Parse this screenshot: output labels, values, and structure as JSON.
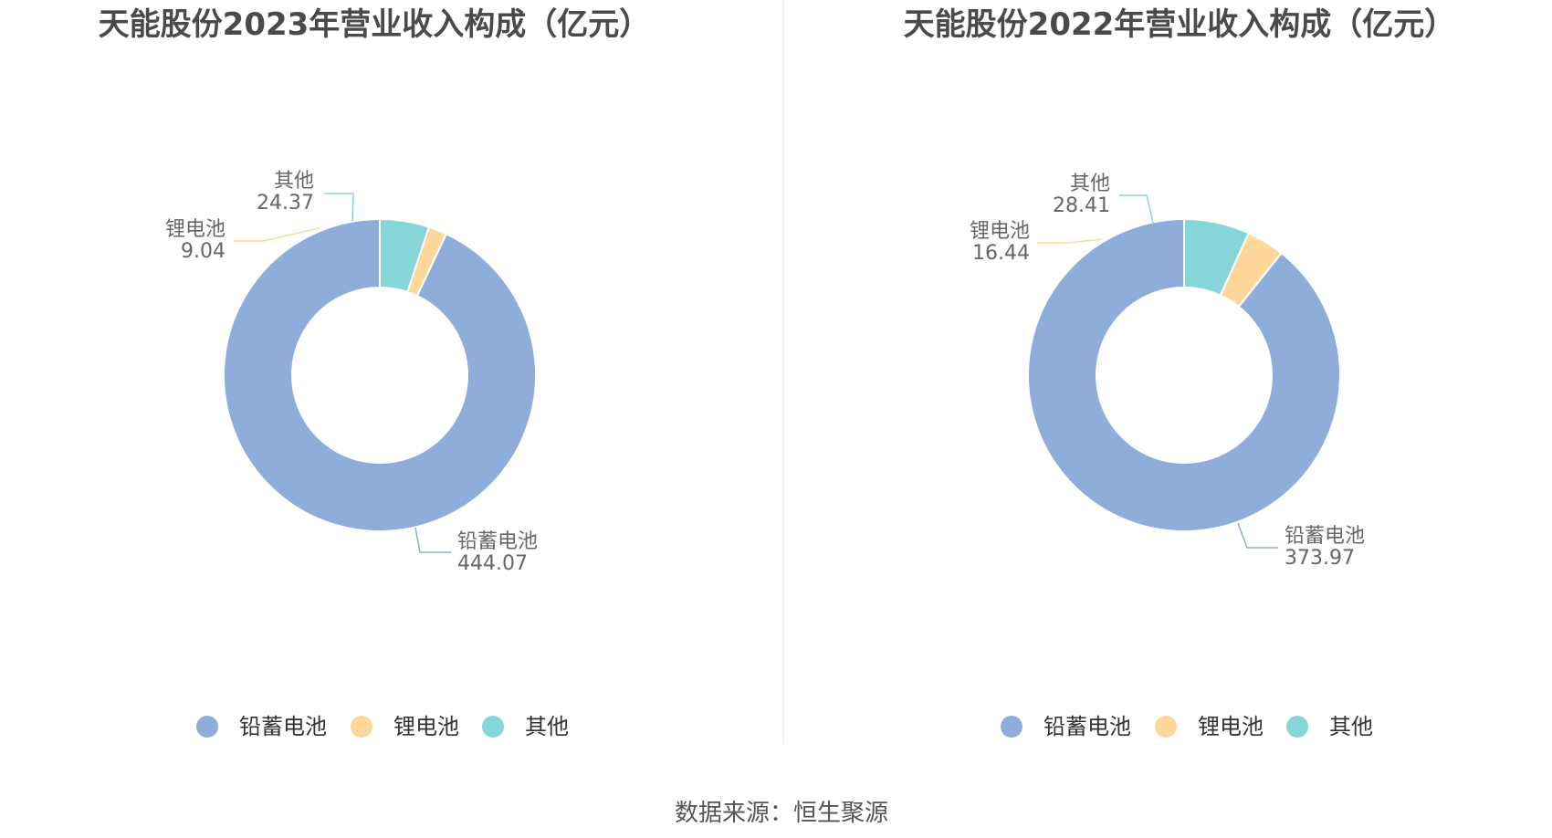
{
  "colors": {
    "lead_acid": "#8eaddb",
    "lithium": "#fdd89a",
    "other": "#86d5d9",
    "divider": "#e8e8e8"
  },
  "source": "数据来源：恒生聚源",
  "chart_data": [
    {
      "type": "pie",
      "title": "天能股份2023年营业收入构成（亿元）",
      "categories": [
        "铅蓄电池",
        "锂电池",
        "其他"
      ],
      "values": [
        444.07,
        9.04,
        24.37
      ],
      "value_labels": [
        "444.07",
        "9.04",
        "24.37"
      ],
      "legend": [
        "铅蓄电池",
        "锂电池",
        "其他"
      ],
      "legend_position": "bottom",
      "donut": true
    },
    {
      "type": "pie",
      "title": "天能股份2022年营业收入构成（亿元）",
      "categories": [
        "铅蓄电池",
        "锂电池",
        "其他"
      ],
      "values": [
        373.97,
        16.44,
        28.41
      ],
      "value_labels": [
        "373.97",
        "16.44",
        "28.41"
      ],
      "legend": [
        "铅蓄电池",
        "锂电池",
        "其他"
      ],
      "legend_position": "bottom",
      "donut": true
    }
  ]
}
